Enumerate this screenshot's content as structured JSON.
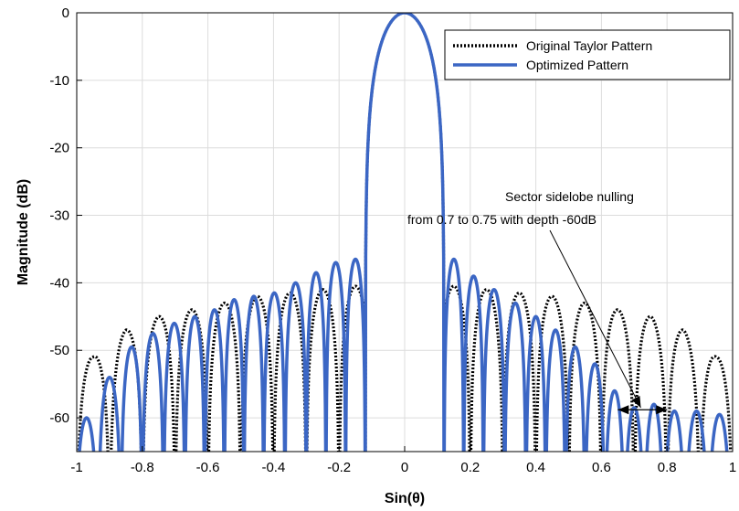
{
  "chart_data": {
    "type": "line",
    "title": "",
    "xlabel": "Sin(θ)",
    "ylabel": "Magnitude (dB)",
    "xlim": [
      -1,
      1
    ],
    "ylim": [
      -65,
      0
    ],
    "x_ticks": [
      "-1",
      "-0.8",
      "-0.6",
      "-0.4",
      "-0.2",
      "0",
      "0.2",
      "0.4",
      "0.6",
      "0.8",
      "1"
    ],
    "y_ticks": [
      "0",
      "-10",
      "-20",
      "-30",
      "-40",
      "-50",
      "-60"
    ],
    "grid": true,
    "legend_position": "top-right",
    "main_lobe": {
      "peak_x": 0,
      "peak_y": 0,
      "null_x": 0.12
    },
    "series": [
      {
        "name": "Original Taylor Pattern",
        "style": "dotted",
        "color": "#000000",
        "sidelobe_peaks": [
          {
            "x": 0.15,
            "y": -40.5
          },
          {
            "x": 0.25,
            "y": -41
          },
          {
            "x": 0.35,
            "y": -41.5
          },
          {
            "x": 0.45,
            "y": -42
          },
          {
            "x": 0.55,
            "y": -43
          },
          {
            "x": 0.65,
            "y": -44
          },
          {
            "x": 0.75,
            "y": -45
          },
          {
            "x": 0.85,
            "y": -47
          },
          {
            "x": 0.95,
            "y": -51
          }
        ]
      },
      {
        "name": "Optimized Pattern",
        "style": "solid",
        "color": "#3b66c4",
        "sidelobe_peaks_left": [
          {
            "x": -0.15,
            "y": -36.5
          },
          {
            "x": -0.21,
            "y": -37
          },
          {
            "x": -0.27,
            "y": -38.5
          },
          {
            "x": -0.33,
            "y": -40
          },
          {
            "x": -0.4,
            "y": -41.5
          },
          {
            "x": -0.46,
            "y": -42
          },
          {
            "x": -0.52,
            "y": -42.5
          },
          {
            "x": -0.58,
            "y": -44
          },
          {
            "x": -0.64,
            "y": -45
          },
          {
            "x": -0.7,
            "y": -46
          },
          {
            "x": -0.77,
            "y": -47.5
          },
          {
            "x": -0.83,
            "y": -49.5
          },
          {
            "x": -0.9,
            "y": -54
          },
          {
            "x": -0.97,
            "y": -60
          }
        ],
        "sidelobe_peaks_right": [
          {
            "x": 0.15,
            "y": -36.5
          },
          {
            "x": 0.21,
            "y": -39
          },
          {
            "x": 0.27,
            "y": -41
          },
          {
            "x": 0.34,
            "y": -43
          },
          {
            "x": 0.4,
            "y": -45
          },
          {
            "x": 0.46,
            "y": -47
          },
          {
            "x": 0.52,
            "y": -49.5
          },
          {
            "x": 0.58,
            "y": -52
          },
          {
            "x": 0.64,
            "y": -56
          },
          {
            "x": 0.7,
            "y": -58.5
          },
          {
            "x": 0.76,
            "y": -58
          },
          {
            "x": 0.82,
            "y": -59
          },
          {
            "x": 0.89,
            "y": -59
          },
          {
            "x": 0.96,
            "y": -59.5
          }
        ]
      }
    ],
    "annotation": {
      "line1": "Sector sidelobe nulling",
      "line2": "from 0.7 to 0.75 with depth -60dB",
      "arrow_target": {
        "x": 0.72,
        "y": -58.5
      },
      "sector_range": [
        0.7,
        0.75
      ],
      "sector_depth": -60
    }
  }
}
